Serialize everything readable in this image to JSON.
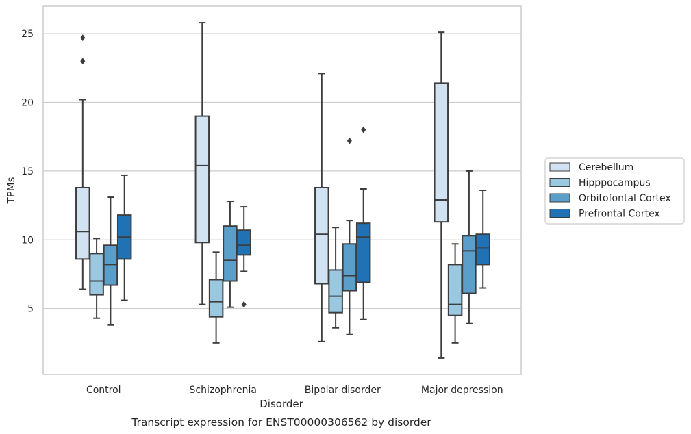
{
  "chart_data": {
    "type": "box",
    "caption": "Transcript expression for ENST00000306562 by disorder",
    "xlabel": "Disorder",
    "ylabel": "TPMs",
    "ylim": [
      0.2,
      27
    ],
    "yticks": [
      5,
      10,
      15,
      20,
      25
    ],
    "grid": "horizontal",
    "legend_position": "right",
    "categories": [
      "Control",
      "Schizophrenia",
      "Bipolar disorder",
      "Major depression"
    ],
    "series": [
      {
        "name": "Cerebellum",
        "color": "#d1e2f2",
        "boxes": [
          {
            "whislo": 6.4,
            "q1": 8.6,
            "med": 10.6,
            "q3": 13.8,
            "whishi": 20.2,
            "fliers": [
              23.0,
              24.7
            ]
          },
          {
            "whislo": 5.3,
            "q1": 9.8,
            "med": 15.4,
            "q3": 19.0,
            "whishi": 25.8,
            "fliers": []
          },
          {
            "whislo": 2.6,
            "q1": 6.8,
            "med": 10.4,
            "q3": 13.8,
            "whishi": 22.1,
            "fliers": []
          },
          {
            "whislo": 1.4,
            "q1": 11.3,
            "med": 12.9,
            "q3": 21.4,
            "whishi": 25.1,
            "fliers": []
          }
        ]
      },
      {
        "name": "Hipppocampus",
        "color": "#9ac8e0",
        "boxes": [
          {
            "whislo": 4.3,
            "q1": 6.0,
            "med": 7.0,
            "q3": 9.0,
            "whishi": 10.1,
            "fliers": []
          },
          {
            "whislo": 2.5,
            "q1": 4.4,
            "med": 5.5,
            "q3": 7.1,
            "whishi": 9.1,
            "fliers": []
          },
          {
            "whislo": 3.6,
            "q1": 4.7,
            "med": 5.9,
            "q3": 7.8,
            "whishi": 10.9,
            "fliers": []
          },
          {
            "whislo": 2.5,
            "q1": 4.5,
            "med": 5.3,
            "q3": 8.2,
            "whishi": 9.7,
            "fliers": []
          }
        ]
      },
      {
        "name": "Orbitofontal Cortex",
        "color": "#5a9ec9",
        "boxes": [
          {
            "whislo": 3.8,
            "q1": 6.7,
            "med": 8.2,
            "q3": 9.6,
            "whishi": 13.1,
            "fliers": []
          },
          {
            "whislo": 5.1,
            "q1": 7.0,
            "med": 8.5,
            "q3": 11.0,
            "whishi": 12.8,
            "fliers": []
          },
          {
            "whislo": 3.1,
            "q1": 6.3,
            "med": 7.4,
            "q3": 9.7,
            "whishi": 11.4,
            "fliers": [
              17.2
            ]
          },
          {
            "whislo": 3.9,
            "q1": 6.1,
            "med": 9.2,
            "q3": 10.3,
            "whishi": 15.0,
            "fliers": []
          }
        ]
      },
      {
        "name": "Prefrontal Cortex",
        "color": "#2171b5",
        "boxes": [
          {
            "whislo": 5.6,
            "q1": 8.6,
            "med": 10.2,
            "q3": 11.8,
            "whishi": 14.7,
            "fliers": []
          },
          {
            "whislo": 7.7,
            "q1": 8.9,
            "med": 9.6,
            "q3": 10.7,
            "whishi": 12.4,
            "fliers": [
              5.3
            ]
          },
          {
            "whislo": 4.2,
            "q1": 6.9,
            "med": 10.2,
            "q3": 11.2,
            "whishi": 13.7,
            "fliers": [
              18.0
            ]
          },
          {
            "whislo": 6.5,
            "q1": 8.2,
            "med": 9.4,
            "q3": 10.4,
            "whishi": 13.6,
            "fliers": []
          }
        ]
      }
    ]
  }
}
